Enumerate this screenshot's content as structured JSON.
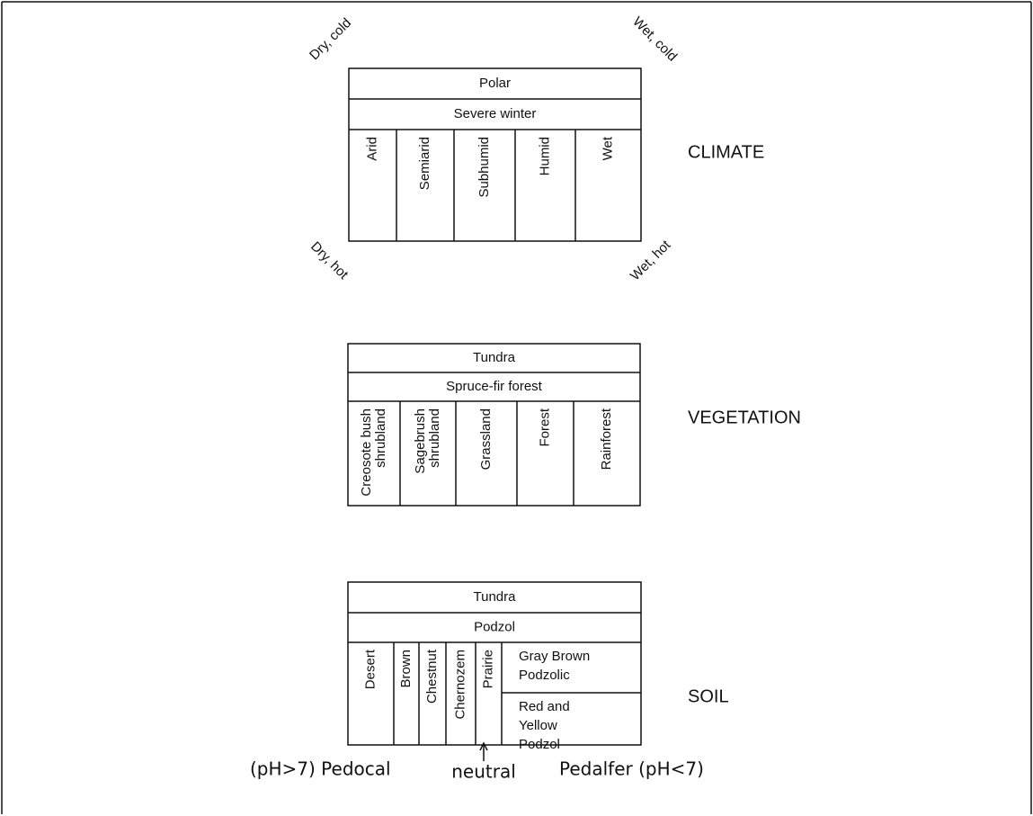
{
  "panels": [
    {
      "label": "CLIMATE",
      "rows": [
        "Polar",
        "Severe winter"
      ],
      "columns": [
        [
          "Arid"
        ],
        [
          "Semiarid"
        ],
        [
          "Subhumid"
        ],
        [
          "Humid"
        ],
        [
          "Wet"
        ]
      ],
      "corners": [
        "Dry, cold",
        "Wet, cold",
        "Dry, hot",
        "Wet, hot"
      ]
    },
    {
      "label": "VEGETATION",
      "rows": [
        "Tundra",
        "Spruce-fir forest"
      ],
      "columns": [
        [
          "Creosote bush",
          "shrubland"
        ],
        [
          "Sagebrush",
          "shrubland"
        ],
        [
          "Grassland"
        ],
        [
          "Forest"
        ],
        [
          "Rainforest"
        ]
      ]
    },
    {
      "label": "SOIL",
      "rows": [
        "Tundra",
        "Podzol"
      ],
      "columns": [
        [
          "Desert"
        ],
        [
          "Brown"
        ],
        [
          "Chestnut"
        ],
        [
          "Chernozem"
        ],
        [
          "Prairie"
        ]
      ],
      "stacked": [
        [
          "Gray Brown",
          "Podzolic"
        ],
        [
          "Red and",
          "Yellow",
          "Podzol"
        ]
      ]
    }
  ],
  "scale": {
    "left": "(pH>7) Pedocal",
    "center": "neutral",
    "right": "Pedalfer (pH<7)"
  }
}
